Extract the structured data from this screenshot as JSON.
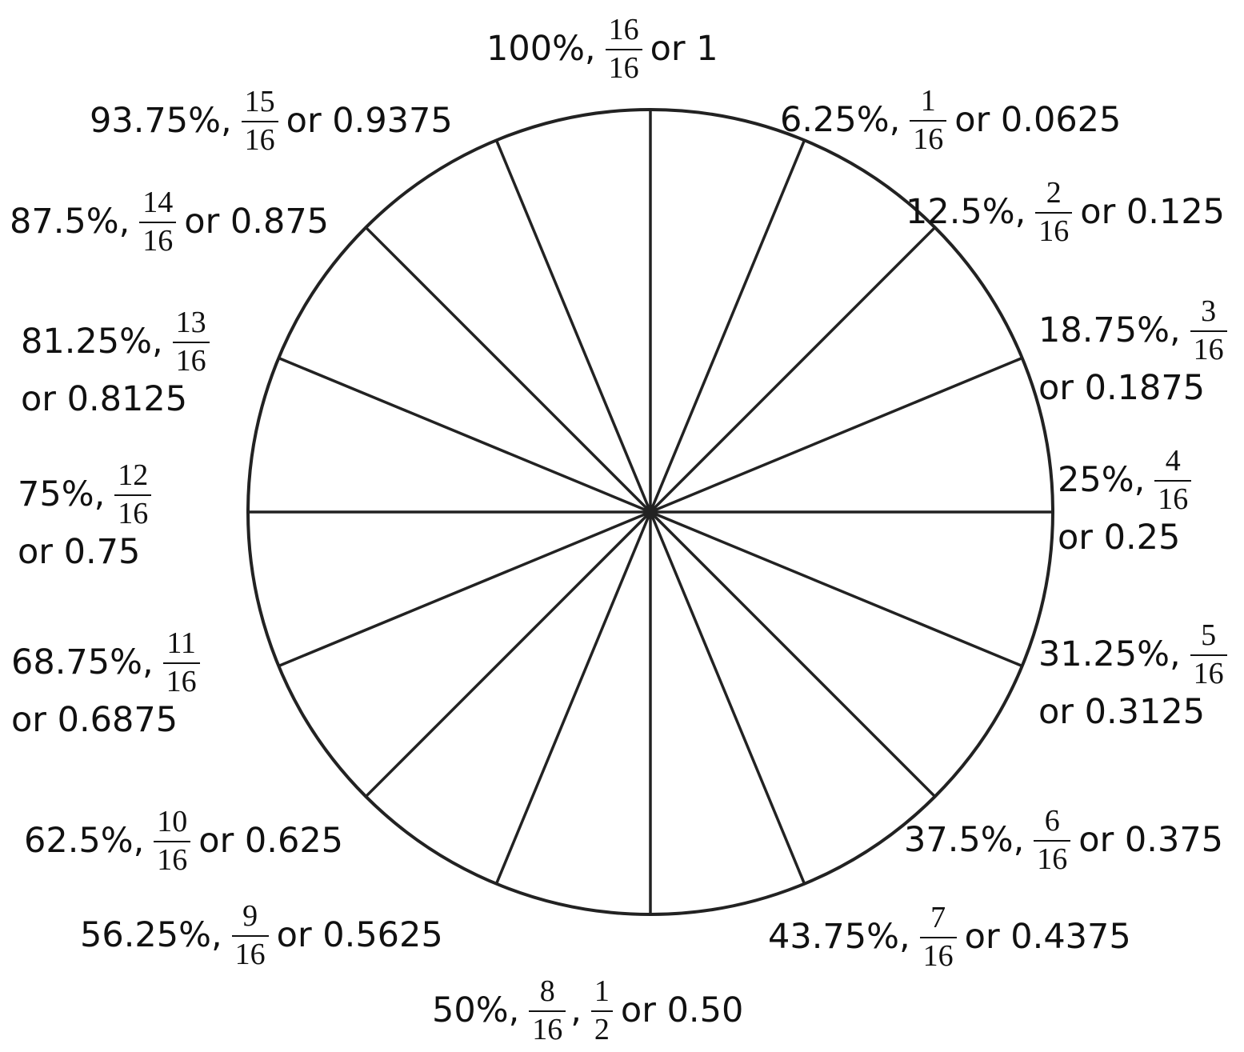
{
  "wheel": {
    "line_color": "#222222",
    "background": "#ffffff",
    "segments": 16
  },
  "labels": [
    {
      "id": "100",
      "pct": "100%,",
      "frac": {
        "num": "16",
        "den": "16"
      },
      "tail": "or 1"
    },
    {
      "id": "6-25",
      "pct": "6.25%,",
      "frac": {
        "num": "1",
        "den": "16"
      },
      "tail": "or 0.0625"
    },
    {
      "id": "12-5",
      "pct": "12.5%,",
      "frac": {
        "num": "2",
        "den": "16"
      },
      "tail": "or 0.125"
    },
    {
      "id": "18-75",
      "pct": "18.75%,",
      "frac": {
        "num": "3",
        "den": "16"
      },
      "tail": "or 0.1875"
    },
    {
      "id": "25",
      "pct": "25%,",
      "frac": {
        "num": "4",
        "den": "16"
      },
      "tail": "or 0.25"
    },
    {
      "id": "31-25",
      "pct": "31.25%,",
      "frac": {
        "num": "5",
        "den": "16"
      },
      "tail": "or 0.3125"
    },
    {
      "id": "37-5",
      "pct": "37.5%,",
      "frac": {
        "num": "6",
        "den": "16"
      },
      "tail": "or 0.375"
    },
    {
      "id": "43-75",
      "pct": "43.75%,",
      "frac": {
        "num": "7",
        "den": "16"
      },
      "tail": "or 0.4375"
    },
    {
      "id": "50",
      "pct": "50%,",
      "frac": {
        "num": "8",
        "den": "16"
      },
      "frac2": {
        "num": "1",
        "den": "2"
      },
      "tail": "or 0.50"
    },
    {
      "id": "56-25",
      "pct": "56.25%,",
      "frac": {
        "num": "9",
        "den": "16"
      },
      "tail": "or 0.5625"
    },
    {
      "id": "62-5",
      "pct": "62.5%,",
      "frac": {
        "num": "10",
        "den": "16"
      },
      "tail": "or 0.625"
    },
    {
      "id": "68-75",
      "pct": "68.75%,",
      "frac": {
        "num": "11",
        "den": "16"
      },
      "tail": "or 0.6875"
    },
    {
      "id": "75",
      "pct": "75%,",
      "frac": {
        "num": "12",
        "den": "16"
      },
      "tail": "or 0.75"
    },
    {
      "id": "81-25",
      "pct": "81.25%,",
      "frac": {
        "num": "13",
        "den": "16"
      },
      "tail": "or 0.8125"
    },
    {
      "id": "87-5",
      "pct": "87.5%,",
      "frac": {
        "num": "14",
        "den": "16"
      },
      "tail": "or 0.875"
    },
    {
      "id": "93-75",
      "pct": "93.75%,",
      "frac": {
        "num": "15",
        "den": "16"
      },
      "tail": "or 0.9375"
    }
  ]
}
